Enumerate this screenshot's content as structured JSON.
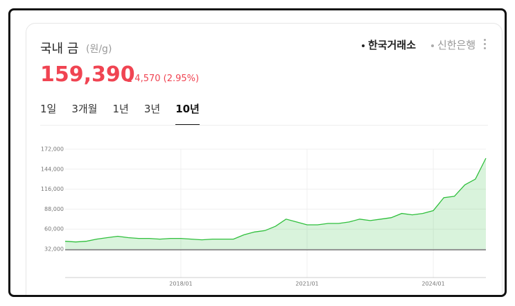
{
  "header": {
    "title": "국내 금",
    "unit": "(원/g)"
  },
  "sources": [
    "한국거래소",
    "신한은행"
  ],
  "price": {
    "value": "159,390",
    "change": "4,570",
    "change_rate": "(2.95%)"
  },
  "tabs": [
    "1일",
    "3개월",
    "1년",
    "3년",
    "10년"
  ],
  "chart_data": {
    "type": "area",
    "x": [
      "2015/04",
      "2015/07",
      "2015/10",
      "2016/01",
      "2016/04",
      "2016/07",
      "2016/10",
      "2017/01",
      "2017/04",
      "2017/07",
      "2017/10",
      "2018/01",
      "2018/04",
      "2018/07",
      "2018/10",
      "2019/01",
      "2019/04",
      "2019/07",
      "2019/10",
      "2020/01",
      "2020/04",
      "2020/07",
      "2020/10",
      "2021/01",
      "2021/04",
      "2021/07",
      "2021/10",
      "2022/01",
      "2022/04",
      "2022/07",
      "2022/10",
      "2023/01",
      "2023/04",
      "2023/07",
      "2023/10",
      "2024/01",
      "2024/04",
      "2024/07",
      "2024/10",
      "2025/01",
      "2025/04"
    ],
    "series": [
      {
        "color": "#2fbf3c",
        "values": [
          43000,
          42000,
          43000,
          46000,
          48000,
          50000,
          48000,
          47000,
          47000,
          46000,
          47000,
          47000,
          46000,
          45000,
          46000,
          46000,
          46000,
          52000,
          56000,
          58000,
          64000,
          74000,
          70000,
          66000,
          66000,
          68000,
          68000,
          70000,
          74000,
          72000,
          74000,
          76000,
          82000,
          80000,
          82000,
          86000,
          104000,
          106000,
          122000,
          130000,
          159390
        ]
      }
    ],
    "ylim": [
      32000,
      172000
    ],
    "yticks": [
      {
        "value": 32000,
        "label": "32,000"
      },
      {
        "value": 60000,
        "label": "60,000"
      },
      {
        "value": 88000,
        "label": "88,000"
      },
      {
        "value": 116000,
        "label": "116,000"
      },
      {
        "value": 144000,
        "label": "144,000"
      },
      {
        "value": 172000,
        "label": "172,000"
      }
    ],
    "xticks": [
      "2018/01",
      "2021/01",
      "2024/01"
    ],
    "grid": true
  }
}
